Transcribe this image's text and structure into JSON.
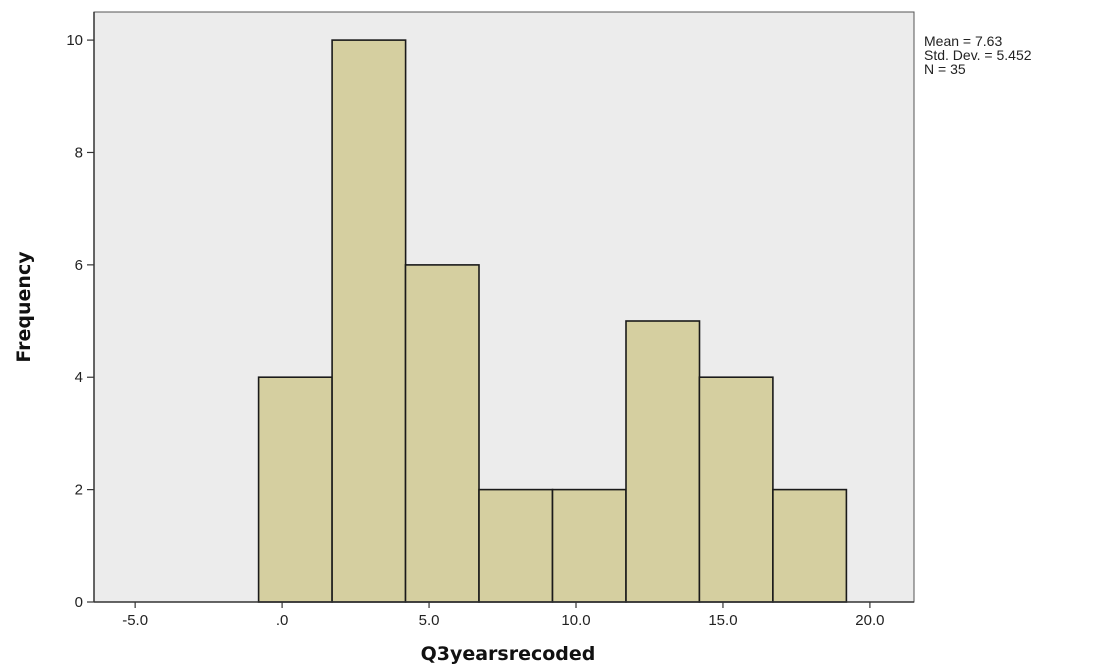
{
  "chart_data": {
    "type": "bar",
    "subtype": "histogram",
    "xlabel": "Q3yearsrecoded",
    "ylabel": "Frequency",
    "bins": [
      {
        "start": -0.8,
        "end": 1.7,
        "value": 4
      },
      {
        "start": 1.7,
        "end": 4.2,
        "value": 10
      },
      {
        "start": 4.2,
        "end": 6.7,
        "value": 6
      },
      {
        "start": 6.7,
        "end": 9.2,
        "value": 2
      },
      {
        "start": 9.2,
        "end": 11.7,
        "value": 2
      },
      {
        "start": 11.7,
        "end": 14.2,
        "value": 5
      },
      {
        "start": 14.2,
        "end": 16.7,
        "value": 4
      },
      {
        "start": 16.7,
        "end": 19.2,
        "value": 2
      }
    ],
    "xlim": [
      -6.4,
      21.5
    ],
    "ylim": [
      0,
      10.5
    ],
    "x_ticks": [
      {
        "value": -5,
        "label": "-5.0"
      },
      {
        "value": 0,
        "label": ".0"
      },
      {
        "value": 5,
        "label": "5.0"
      },
      {
        "value": 10,
        "label": "10.0"
      },
      {
        "value": 15,
        "label": "15.0"
      },
      {
        "value": 20,
        "label": "20.0"
      }
    ],
    "y_ticks": [
      {
        "value": 0,
        "label": "0"
      },
      {
        "value": 2,
        "label": "2"
      },
      {
        "value": 4,
        "label": "4"
      },
      {
        "value": 6,
        "label": "6"
      },
      {
        "value": 8,
        "label": "8"
      },
      {
        "value": 10,
        "label": "10"
      }
    ],
    "grid": false,
    "statistics": {
      "mean": "Mean = 7.63",
      "std_dev": "Std. Dev. = 5.452",
      "n": "N = 35"
    },
    "colors": {
      "bar_fill": "#d5cfa0",
      "bar_stroke": "#1a1a1a",
      "plot_background": "#ececec"
    }
  }
}
